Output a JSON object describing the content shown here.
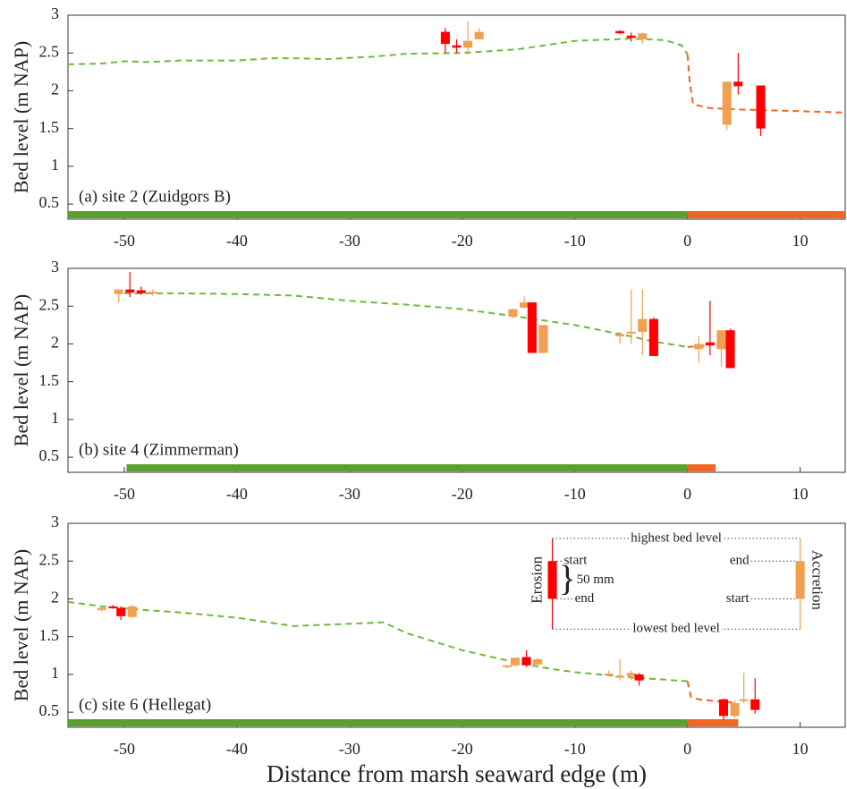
{
  "chart_data": [
    {
      "type": "candlestick",
      "ylabel": "Bed level  (m NAP)",
      "panel_label": "(a) site 2 (Zuidgors B)",
      "xlim": [
        -55,
        14
      ],
      "ylim": [
        0.3,
        3
      ],
      "xticks": [
        -50,
        -40,
        -30,
        -20,
        -10,
        0,
        10
      ],
      "yticks": [
        0.5,
        1,
        1.5,
        2,
        2.5,
        3
      ],
      "erosion_color": "#ff0000",
      "accretion_color": "#f0a050",
      "profile": [
        {
          "color": "#6fb83a",
          "x": [
            -55,
            -52,
            -50,
            -48,
            -45,
            -40,
            -37,
            -35,
            -32,
            -28,
            -25,
            -20,
            -15,
            -10,
            -5,
            -2,
            -0.5,
            0
          ],
          "y": [
            2.35,
            2.36,
            2.39,
            2.38,
            2.4,
            2.4,
            2.43,
            2.43,
            2.42,
            2.45,
            2.49,
            2.5,
            2.55,
            2.66,
            2.69,
            2.67,
            2.6,
            2.48
          ]
        },
        {
          "color": "#f26522",
          "x": [
            0,
            0.2,
            0.5,
            2,
            5,
            10,
            14
          ],
          "y": [
            2.48,
            2.1,
            1.82,
            1.77,
            1.75,
            1.73,
            1.71
          ]
        }
      ],
      "zones": [
        {
          "color": "#5aa02c",
          "x": [
            -55,
            0
          ]
        },
        {
          "color": "#f26522",
          "x": [
            0,
            14
          ]
        }
      ],
      "candles": {
        "x": [
          -21.5,
          -20.5,
          -19.5,
          -18.5,
          -6,
          -5,
          -4,
          3.5,
          4.5,
          6.5
        ],
        "start": [
          2.78,
          2.6,
          2.57,
          2.68,
          2.79,
          2.73,
          2.68,
          1.55,
          2.12,
          2.07
        ],
        "end": [
          2.62,
          2.57,
          2.66,
          2.78,
          2.76,
          2.7,
          2.76,
          2.12,
          2.06,
          1.5
        ],
        "high": [
          2.83,
          2.68,
          2.92,
          2.83,
          2.8,
          2.77,
          2.77,
          2.12,
          2.5,
          2.07
        ],
        "low": [
          2.5,
          2.5,
          2.48,
          2.68,
          2.75,
          2.65,
          2.62,
          1.48,
          1.95,
          1.4
        ]
      }
    },
    {
      "type": "candlestick",
      "ylabel": "Bed level  (m NAP)",
      "panel_label": "(b) site 4 (Zimmerman)",
      "xlim": [
        -55,
        14
      ],
      "ylim": [
        0.3,
        3
      ],
      "xticks": [
        -50,
        -40,
        -30,
        -20,
        -10,
        0,
        10
      ],
      "yticks": [
        0.5,
        1,
        1.5,
        2,
        2.5,
        3
      ],
      "erosion_color": "#ff0000",
      "accretion_color": "#f0a050",
      "profile": [
        {
          "color": "#6fb83a",
          "x": [
            -50,
            -45,
            -40,
            -35,
            -30,
            -25,
            -20,
            -15,
            -10,
            -5,
            -3,
            0
          ],
          "y": [
            2.67,
            2.67,
            2.66,
            2.64,
            2.57,
            2.52,
            2.46,
            2.36,
            2.25,
            2.1,
            2.03,
            1.96
          ]
        },
        {
          "color": "#f26522",
          "x": [
            0,
            2
          ],
          "y": [
            1.96,
            1.98
          ]
        }
      ],
      "zones": [
        {
          "color": "#5aa02c",
          "x": [
            -49.8,
            0
          ]
        },
        {
          "color": "#f26522",
          "x": [
            0,
            2.5
          ]
        }
      ],
      "candles": {
        "x": [
          -50.5,
          -49.5,
          -48.5,
          -47.5,
          -15.5,
          -14.5,
          -13.8,
          -12.8,
          -6,
          -5,
          -4,
          -3,
          1,
          2,
          3,
          3.8
        ],
        "start": [
          2.66,
          2.72,
          2.71,
          2.67,
          2.36,
          2.48,
          2.55,
          1.88,
          2.1,
          2.14,
          2.16,
          2.33,
          1.93,
          2.02,
          1.93,
          2.18
        ],
        "end": [
          2.72,
          2.68,
          2.67,
          2.69,
          2.46,
          2.55,
          1.88,
          2.25,
          2.13,
          2.16,
          2.33,
          1.84,
          2.0,
          1.98,
          2.18,
          1.68
        ],
        "high": [
          2.72,
          2.95,
          2.76,
          2.72,
          2.47,
          2.63,
          2.55,
          2.25,
          2.16,
          2.72,
          2.72,
          2.35,
          2.1,
          2.57,
          2.18,
          2.2
        ],
        "low": [
          2.55,
          2.62,
          2.65,
          2.64,
          2.34,
          2.47,
          1.88,
          1.88,
          2.0,
          2.0,
          1.85,
          1.84,
          1.75,
          1.85,
          1.7,
          1.68
        ]
      }
    },
    {
      "type": "candlestick",
      "ylabel": "Bed level  (m NAP)",
      "panel_label": "(c) site 6 (Hellegat)",
      "xlabel": "Distance from marsh seaward edge  (m)",
      "xlim": [
        -55,
        14
      ],
      "ylim": [
        0.3,
        3
      ],
      "xticks": [
        -50,
        -40,
        -30,
        -20,
        -10,
        0,
        10
      ],
      "yticks": [
        0.5,
        1,
        1.5,
        2,
        2.5,
        3
      ],
      "erosion_color": "#ff0000",
      "accretion_color": "#f0a050",
      "profile": [
        {
          "color": "#6fb83a",
          "x": [
            -55,
            -52,
            -48,
            -45,
            -40,
            -35,
            -30,
            -27,
            -25,
            -20,
            -15,
            -12,
            -10,
            -5,
            -2,
            0
          ],
          "y": [
            1.96,
            1.9,
            1.85,
            1.82,
            1.75,
            1.64,
            1.67,
            1.69,
            1.55,
            1.32,
            1.15,
            1.07,
            1.03,
            0.96,
            0.93,
            0.91
          ]
        },
        {
          "color": "#f26522",
          "x": [
            0,
            0.3,
            1,
            3,
            4
          ],
          "y": [
            0.91,
            0.7,
            0.67,
            0.64,
            0.63
          ]
        }
      ],
      "zones": [
        {
          "color": "#5aa02c",
          "x": [
            -55,
            0
          ]
        },
        {
          "color": "#f26522",
          "x": [
            0,
            4.5
          ]
        }
      ],
      "candles": {
        "x": [
          -52,
          -51,
          -50.3,
          -49.3,
          -16,
          -15.3,
          -14.3,
          -13.3,
          -7,
          -6,
          -5,
          -4.3,
          3.2,
          4.2,
          5,
          6
        ],
        "start": [
          1.85,
          1.9,
          1.88,
          1.76,
          1.1,
          1.12,
          1.23,
          1.13,
          1.0,
          0.97,
          0.98,
          1.0,
          0.67,
          0.45,
          0.65,
          0.67
        ],
        "end": [
          1.88,
          1.88,
          1.77,
          1.9,
          1.12,
          1.22,
          1.12,
          1.2,
          1.01,
          0.98,
          1.02,
          0.92,
          0.45,
          0.62,
          0.67,
          0.53
        ],
        "high": [
          1.9,
          1.92,
          1.9,
          1.92,
          1.12,
          1.22,
          1.32,
          1.22,
          1.05,
          1.2,
          1.05,
          1.02,
          0.68,
          0.66,
          1.02,
          0.95
        ],
        "low": [
          1.84,
          1.87,
          1.72,
          1.75,
          1.08,
          1.1,
          1.1,
          1.12,
          0.98,
          0.92,
          0.92,
          0.85,
          0.4,
          0.43,
          0.62,
          0.48
        ]
      },
      "key": {
        "erosion": {
          "x": -12,
          "high": 2.8,
          "start": 2.5,
          "end": 2.0,
          "low": 1.6
        },
        "accretion": {
          "x": 10,
          "high": 2.8,
          "start": 2.0,
          "end": 2.5,
          "low": 1.6
        },
        "highest_label": "highest bed level",
        "lowest_label": "lowest bed level",
        "start_label": "start",
        "end_label": "end",
        "size_label": "50 mm",
        "erosion_label": "Erosion",
        "accretion_label": "Accretion"
      }
    }
  ]
}
